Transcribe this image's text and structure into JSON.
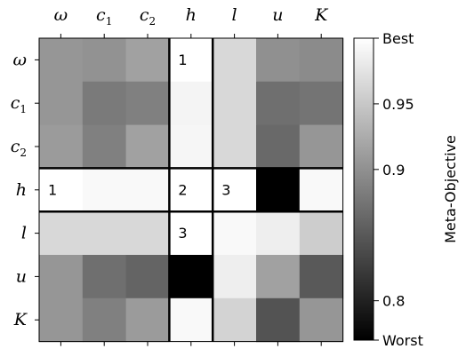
{
  "chart_data": {
    "type": "heatmap",
    "row_labels": [
      {
        "main": "ω",
        "sub": ""
      },
      {
        "main": "c",
        "sub": "1"
      },
      {
        "main": "c",
        "sub": "2"
      },
      {
        "main": "h",
        "sub": ""
      },
      {
        "main": "l",
        "sub": ""
      },
      {
        "main": "u",
        "sub": ""
      },
      {
        "main": "K",
        "sub": ""
      }
    ],
    "col_labels": [
      {
        "main": "ω",
        "sub": ""
      },
      {
        "main": "c",
        "sub": "1"
      },
      {
        "main": "c",
        "sub": "2"
      },
      {
        "main": "h",
        "sub": ""
      },
      {
        "main": "l",
        "sub": ""
      },
      {
        "main": "u",
        "sub": ""
      },
      {
        "main": "K",
        "sub": ""
      }
    ],
    "values": [
      [
        0.905,
        0.902,
        0.915,
        1.0,
        0.965,
        0.9,
        0.895
      ],
      [
        0.905,
        0.88,
        0.885,
        0.99,
        0.965,
        0.87,
        0.875
      ],
      [
        0.91,
        0.885,
        0.915,
        0.992,
        0.965,
        0.865,
        0.905
      ],
      [
        1.0,
        0.995,
        0.995,
        1.0,
        1.0,
        0.77,
        0.995
      ],
      [
        0.965,
        0.965,
        0.965,
        1.0,
        0.995,
        0.985,
        0.955
      ],
      [
        0.905,
        0.87,
        0.86,
        0.77,
        0.985,
        0.915,
        0.85
      ],
      [
        0.905,
        0.885,
        0.91,
        0.995,
        0.96,
        0.845,
        0.905
      ]
    ],
    "annotations": [
      {
        "row": 0,
        "col": 3,
        "text": "1"
      },
      {
        "row": 3,
        "col": 0,
        "text": "1"
      },
      {
        "row": 3,
        "col": 3,
        "text": "2"
      },
      {
        "row": 3,
        "col": 4,
        "text": "3"
      },
      {
        "row": 4,
        "col": 3,
        "text": "3"
      }
    ],
    "highlight_row": 3,
    "highlight_col": 3,
    "colorbar": {
      "label": "Meta-Objective",
      "min": 0.77,
      "max": 1.0,
      "ticks": [
        {
          "value": 1.0,
          "label": "Best"
        },
        {
          "value": 0.95,
          "label": "0.95"
        },
        {
          "value": 0.9,
          "label": "0.9"
        },
        {
          "value": 0.8,
          "label": "0.8"
        },
        {
          "value": 0.77,
          "label": "Worst"
        }
      ]
    },
    "colormap": "grayscale (black = worst, white = best)"
  }
}
